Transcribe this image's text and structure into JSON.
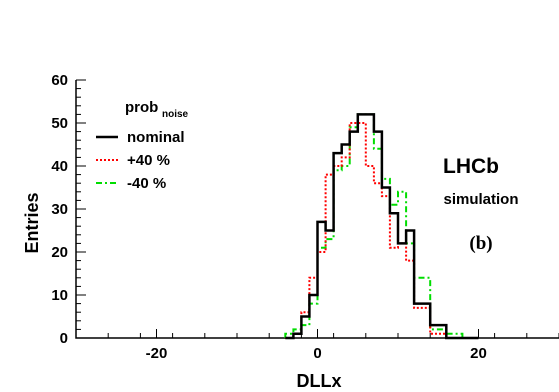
{
  "chart_data": {
    "type": "histogram",
    "xlabel": "DLLx",
    "ylabel": "Entries",
    "xlim": [
      -30,
      30
    ],
    "ylim": [
      0,
      60
    ],
    "x_ticks": [
      -20,
      0,
      20
    ],
    "y_ticks": [
      0,
      10,
      20,
      30,
      40,
      50,
      60
    ],
    "grid": false,
    "legend": {
      "placement": "top-left",
      "title_main": "prob",
      "title_sub": "noise"
    },
    "annotations": {
      "experiment": "LHCb",
      "status": "simulation",
      "panel": "(b)"
    },
    "bin_edges": [
      -4,
      -3,
      -2,
      -1,
      0,
      1,
      2,
      3,
      4,
      5,
      6,
      7,
      8,
      9,
      10,
      11,
      12,
      13,
      14,
      15,
      16,
      17,
      18,
      19,
      20
    ],
    "series": [
      {
        "name": "nominal",
        "color": "#000000",
        "style": "solid",
        "values": [
          0,
          1,
          5,
          10,
          27,
          25,
          43,
          45,
          48,
          52,
          52,
          48,
          35,
          29,
          22,
          25,
          8,
          8,
          3,
          3,
          0,
          0,
          0,
          0
        ]
      },
      {
        "name": "+40 %",
        "color": "#ff0000",
        "style": "dotted",
        "values": [
          0,
          1,
          6,
          14,
          20,
          38,
          40,
          42,
          50,
          50,
          40,
          36,
          33,
          21,
          22,
          18,
          7,
          7,
          1,
          1,
          0,
          0,
          0,
          0
        ]
      },
      {
        "name": "-40 %",
        "color": "#00dd00",
        "style": "dashdot",
        "values": [
          1,
          2,
          3,
          8,
          21,
          23,
          39,
          40,
          49,
          52,
          52,
          44,
          37,
          31,
          34,
          22,
          14,
          14,
          2,
          2,
          1,
          1,
          0,
          0
        ]
      }
    ]
  }
}
